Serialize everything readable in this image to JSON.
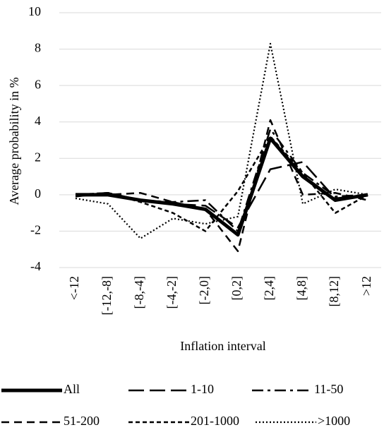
{
  "chart_data": {
    "type": "line",
    "x_label": "Inflation interval",
    "y_label": "Average probability in %",
    "categories": [
      "<-12",
      "[-12,-8]",
      "[-8,-4]",
      "[-4,-2]",
      "[-2,0]",
      "[0,2]",
      "[2,4]",
      "[4,8]",
      "[8,12]",
      ">12"
    ],
    "series": [
      {
        "name": "All",
        "color": "#000000",
        "values": [
          0,
          0,
          -0.3,
          -0.5,
          -0.8,
          -2.2,
          3.1,
          1.0,
          -0.3,
          0
        ]
      },
      {
        "name": "1-10",
        "color": "#000000",
        "values": [
          0,
          0.1,
          -0.3,
          -0.5,
          -0.6,
          -1.8,
          1.4,
          1.8,
          -0.2,
          0
        ]
      },
      {
        "name": "11-50",
        "color": "#000000",
        "values": [
          -0.1,
          0.1,
          -0.3,
          -0.4,
          -0.3,
          -2.0,
          3.6,
          1.2,
          -0.1,
          0
        ]
      },
      {
        "name": "51-200",
        "color": "#000000",
        "values": [
          0,
          0,
          0.1,
          -0.4,
          -0.8,
          -3.1,
          4.1,
          0.0,
          0.1,
          -0.3
        ]
      },
      {
        "name": "201-1000",
        "color": "#000000",
        "values": [
          0,
          0.1,
          -0.4,
          -1.0,
          -2.0,
          0.2,
          3.2,
          1.2,
          -1.0,
          0
        ]
      },
      {
        "name": ">1000",
        "color": "#000000",
        "values": [
          -0.2,
          -0.5,
          -2.4,
          -1.3,
          -1.6,
          -1.2,
          8.3,
          -0.5,
          0.3,
          0
        ]
      }
    ],
    "ylim": [
      -4,
      10
    ],
    "yticks": [
      -4,
      -2,
      0,
      2,
      4,
      6,
      8,
      10
    ],
    "grid": true
  }
}
